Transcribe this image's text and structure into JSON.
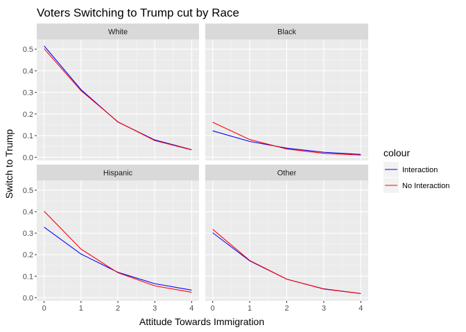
{
  "chart_data": {
    "type": "line",
    "title": "Voters Switching to Trump cut by Race",
    "xlabel": "Attitude Towards Immigration",
    "ylabel": "Switch to Trump",
    "x": [
      0,
      1,
      2,
      3,
      4
    ],
    "xlim": [
      -0.2,
      4.2
    ],
    "ylim": [
      -0.015,
      0.545
    ],
    "x_ticks": [
      0,
      1,
      2,
      3,
      4
    ],
    "x_tick_labels": [
      "0",
      "1",
      "2",
      "3",
      "4"
    ],
    "y_ticks": [
      0.0,
      0.1,
      0.2,
      0.3,
      0.4,
      0.5
    ],
    "y_tick_labels": [
      "0.0",
      "0.1",
      "0.2",
      "0.3",
      "0.4",
      "0.5"
    ],
    "grid": true,
    "legend": {
      "title": "colour",
      "placement": "right",
      "entries": [
        {
          "name": "Interaction",
          "color": "#0000ff"
        },
        {
          "name": "No Interaction",
          "color": "#ff0000"
        }
      ]
    },
    "panel_background": "#ebebeb",
    "strip_background": "#d9d9d9",
    "panels": [
      {
        "label": "White",
        "series": [
          {
            "name": "Interaction",
            "color": "#0000ff",
            "values": [
              0.515,
              0.313,
              0.163,
              0.08,
              0.035
            ]
          },
          {
            "name": "No Interaction",
            "color": "#ff0000",
            "values": [
              0.502,
              0.308,
              0.164,
              0.077,
              0.034
            ]
          }
        ]
      },
      {
        "label": "Black",
        "series": [
          {
            "name": "Interaction",
            "color": "#0000ff",
            "values": [
              0.122,
              0.073,
              0.042,
              0.023,
              0.013
            ]
          },
          {
            "name": "No Interaction",
            "color": "#ff0000",
            "values": [
              0.162,
              0.082,
              0.038,
              0.018,
              0.01
            ]
          }
        ]
      },
      {
        "label": "Hispanic",
        "series": [
          {
            "name": "Interaction",
            "color": "#0000ff",
            "values": [
              0.328,
              0.203,
              0.118,
              0.065,
              0.035
            ]
          },
          {
            "name": "No Interaction",
            "color": "#ff0000",
            "values": [
              0.402,
              0.226,
              0.116,
              0.055,
              0.025
            ]
          }
        ]
      },
      {
        "label": "Other",
        "series": [
          {
            "name": "Interaction",
            "color": "#0000ff",
            "values": [
              0.302,
              0.171,
              0.086,
              0.041,
              0.019
            ]
          },
          {
            "name": "No Interaction",
            "color": "#ff0000",
            "values": [
              0.318,
              0.173,
              0.086,
              0.04,
              0.019
            ]
          }
        ]
      }
    ]
  }
}
